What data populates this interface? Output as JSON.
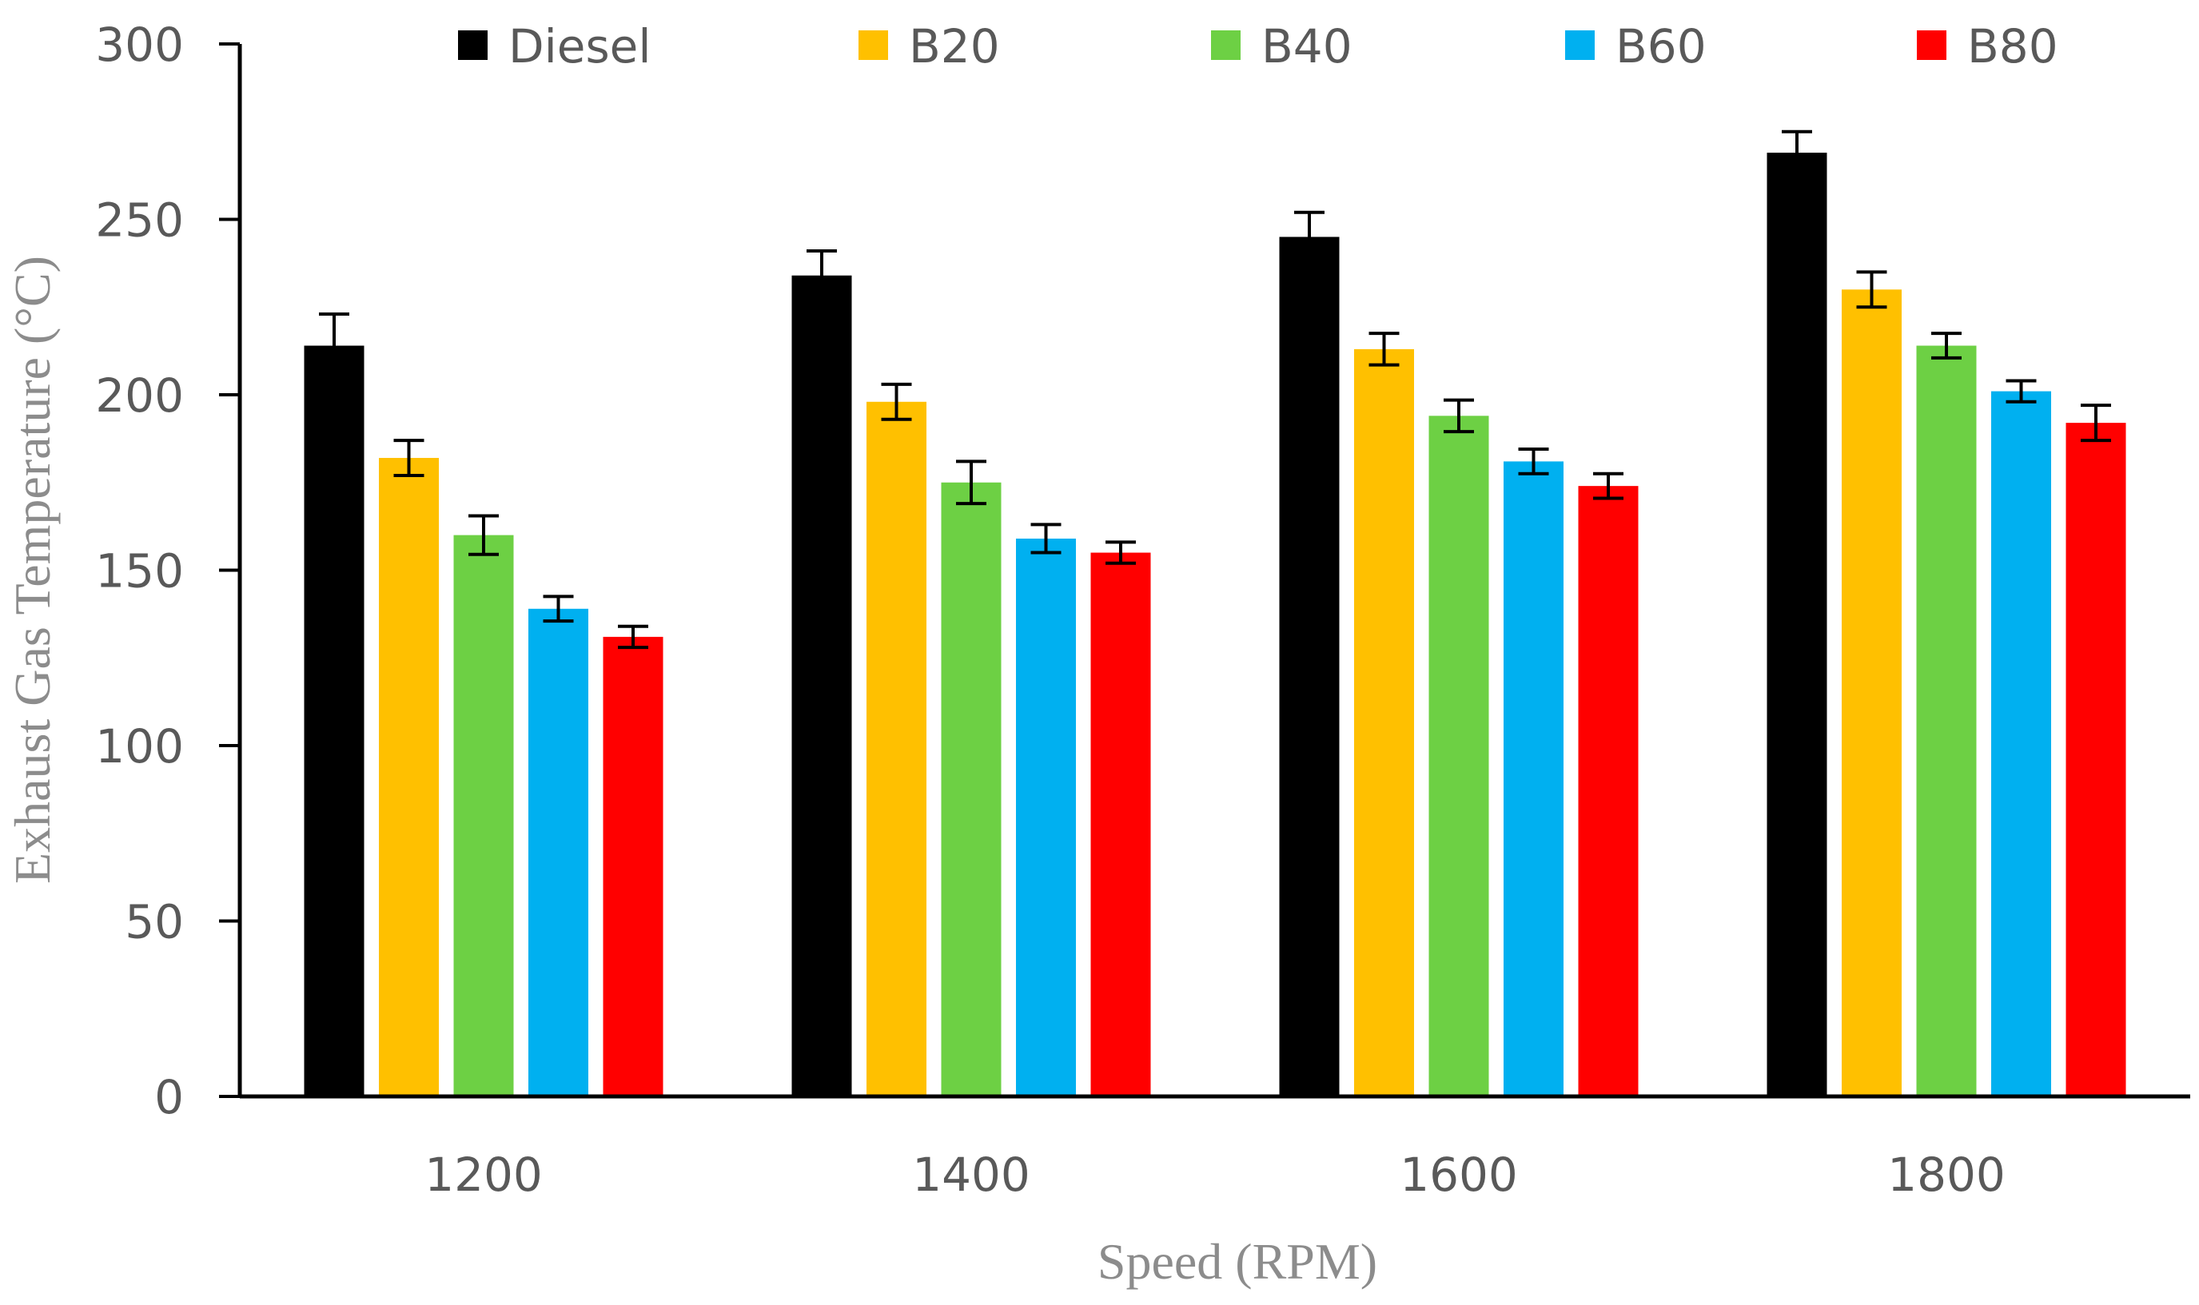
{
  "chart_data": {
    "type": "bar",
    "title": "",
    "xlabel": "Speed (RPM)",
    "ylabel": "Exhaust Gas Temperature (°C)",
    "ylim": [
      0,
      300
    ],
    "yticks": [
      0,
      50,
      100,
      150,
      200,
      250,
      300
    ],
    "yticks_text": [
      "0",
      "50",
      "100",
      "150",
      "200",
      "250",
      "300"
    ],
    "grid": false,
    "legend_position": "top",
    "categories": [
      "1200",
      "1400",
      "1600",
      "1800"
    ],
    "series": [
      {
        "name": "Diesel",
        "color": "#000000",
        "values": [
          214,
          234,
          245,
          269
        ],
        "errors": [
          9,
          7,
          7,
          6
        ]
      },
      {
        "name": "B20",
        "color": "#FFC000",
        "values": [
          182,
          198,
          213,
          230
        ],
        "errors": [
          5,
          5,
          4.5,
          5
        ]
      },
      {
        "name": "B40",
        "color": "#6DD044",
        "values": [
          160,
          175,
          194,
          214
        ],
        "errors": [
          5.5,
          6,
          4.5,
          3.5
        ]
      },
      {
        "name": "B60",
        "color": "#00B0F0",
        "values": [
          139,
          159,
          181,
          201
        ],
        "errors": [
          3.5,
          4,
          3.5,
          3
        ]
      },
      {
        "name": "B80",
        "color": "#FF0000",
        "values": [
          131,
          155,
          174,
          192
        ],
        "errors": [
          3,
          3,
          3.5,
          5
        ]
      }
    ]
  }
}
